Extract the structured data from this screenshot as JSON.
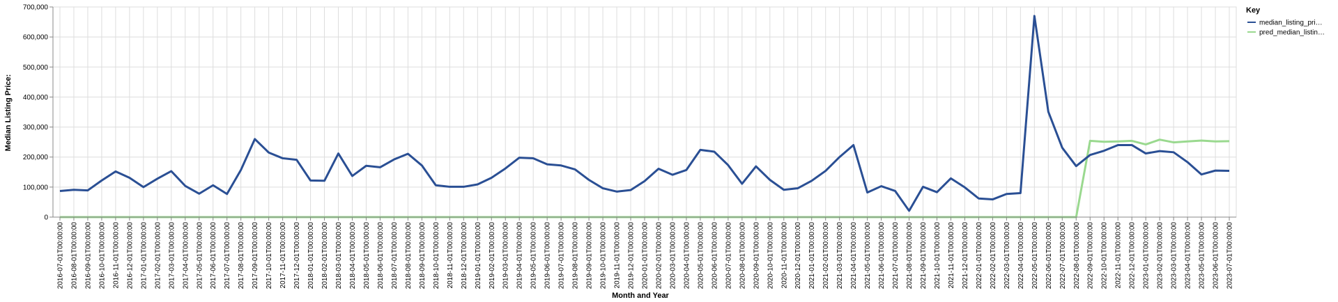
{
  "chart_data": {
    "type": "line",
    "xlabel": "Month and Year",
    "ylabel": "Median Listing Price:",
    "ylim": [
      0,
      700000
    ],
    "yticks": [
      "0",
      "100,000",
      "200,000",
      "300,000",
      "400,000",
      "500,000",
      "600,000",
      "700,000"
    ],
    "grid": true,
    "legend": {
      "title": "Key",
      "placement": "top-right"
    },
    "x": [
      "2016-07-01T00:00:00",
      "2016-08-01T00:00:00",
      "2016-09-01T00:00:00",
      "2016-10-01T00:00:00",
      "2016-11-01T00:00:00",
      "2016-12-01T00:00:00",
      "2017-01-01T00:00:00",
      "2017-02-01T00:00:00",
      "2017-03-01T00:00:00",
      "2017-04-01T00:00:00",
      "2017-05-01T00:00:00",
      "2017-06-01T00:00:00",
      "2017-07-01T00:00:00",
      "2017-08-01T00:00:00",
      "2017-09-01T00:00:00",
      "2017-10-01T00:00:00",
      "2017-11-01T00:00:00",
      "2017-12-01T00:00:00",
      "2018-01-01T00:00:00",
      "2018-02-01T00:00:00",
      "2018-03-01T00:00:00",
      "2018-04-01T00:00:00",
      "2018-05-01T00:00:00",
      "2018-06-01T00:00:00",
      "2018-07-01T00:00:00",
      "2018-08-01T00:00:00",
      "2018-09-01T00:00:00",
      "2018-10-01T00:00:00",
      "2018-11-01T00:00:00",
      "2018-12-01T00:00:00",
      "2019-01-01T00:00:00",
      "2019-02-01T00:00:00",
      "2019-03-01T00:00:00",
      "2019-04-01T00:00:00",
      "2019-05-01T00:00:00",
      "2019-06-01T00:00:00",
      "2019-07-01T00:00:00",
      "2019-08-01T00:00:00",
      "2019-09-01T00:00:00",
      "2019-10-01T00:00:00",
      "2019-11-01T00:00:00",
      "2019-12-01T00:00:00",
      "2020-01-01T00:00:00",
      "2020-02-01T00:00:00",
      "2020-03-01T00:00:00",
      "2020-04-01T00:00:00",
      "2020-05-01T00:00:00",
      "2020-06-01T00:00:00",
      "2020-07-01T00:00:00",
      "2020-08-01T00:00:00",
      "2020-09-01T00:00:00",
      "2020-10-01T00:00:00",
      "2020-11-01T00:00:00",
      "2020-12-01T00:00:00",
      "2021-01-01T00:00:00",
      "2021-02-01T00:00:00",
      "2021-03-01T00:00:00",
      "2021-04-01T00:00:00",
      "2021-05-01T00:00:00",
      "2021-06-01T00:00:00",
      "2021-07-01T00:00:00",
      "2021-08-01T00:00:00",
      "2021-09-01T00:00:00",
      "2021-10-01T00:00:00",
      "2021-11-01T00:00:00",
      "2021-12-01T00:00:00",
      "2022-01-01T00:00:00",
      "2022-02-01T00:00:00",
      "2022-03-01T00:00:00",
      "2022-04-01T00:00:00",
      "2022-05-01T00:00:00",
      "2022-06-01T00:00:00",
      "2022-07-01T00:00:00",
      "2022-08-01T00:00:00",
      "2022-09-01T00:00:00",
      "2022-10-01T00:00:00",
      "2022-11-01T00:00:00",
      "2022-12-01T00:00:00",
      "2023-01-01T00:00:00",
      "2023-02-01T00:00:00",
      "2023-03-01T00:00:00",
      "2023-04-01T00:00:00",
      "2023-05-01T00:00:00",
      "2023-06-01T00:00:00",
      "2023-07-01T00:00:00"
    ],
    "series": [
      {
        "name": "median_listing_pri…",
        "color": "#2a4f94",
        "values": [
          87000,
          91000,
          89000,
          122000,
          152000,
          131000,
          100000,
          128000,
          153000,
          104000,
          78000,
          106000,
          77000,
          157000,
          260000,
          215000,
          196000,
          191000,
          122000,
          121000,
          212000,
          137000,
          171000,
          166000,
          192000,
          211000,
          172000,
          106000,
          101000,
          101000,
          109000,
          131000,
          162000,
          198000,
          196000,
          176000,
          172000,
          159000,
          124000,
          96000,
          85000,
          90000,
          120000,
          161000,
          141000,
          157000,
          224000,
          218000,
          173000,
          111000,
          169000,
          124000,
          91000,
          96000,
          121000,
          154000,
          200000,
          240000,
          82000,
          103000,
          87000,
          21000,
          101000,
          83000,
          129000,
          99000,
          62000,
          59000,
          77000,
          80000,
          670000,
          351000,
          231000,
          170000,
          207000,
          221000,
          240000,
          240000,
          212000,
          220000,
          216000,
          183000,
          142000,
          155000,
          154000
        ]
      },
      {
        "name": "pred_median_listin…",
        "color": "#9ad98f",
        "values": [
          0,
          0,
          0,
          0,
          0,
          0,
          0,
          0,
          0,
          0,
          0,
          0,
          0,
          0,
          0,
          0,
          0,
          0,
          0,
          0,
          0,
          0,
          0,
          0,
          0,
          0,
          0,
          0,
          0,
          0,
          0,
          0,
          0,
          0,
          0,
          0,
          0,
          0,
          0,
          0,
          0,
          0,
          0,
          0,
          0,
          0,
          0,
          0,
          0,
          0,
          0,
          0,
          0,
          0,
          0,
          0,
          0,
          0,
          0,
          0,
          0,
          0,
          0,
          0,
          0,
          0,
          0,
          0,
          0,
          0,
          0,
          0,
          0,
          0,
          254000,
          251000,
          252000,
          254000,
          242000,
          258000,
          249000,
          252000,
          255000,
          252000,
          253000
        ]
      }
    ]
  }
}
